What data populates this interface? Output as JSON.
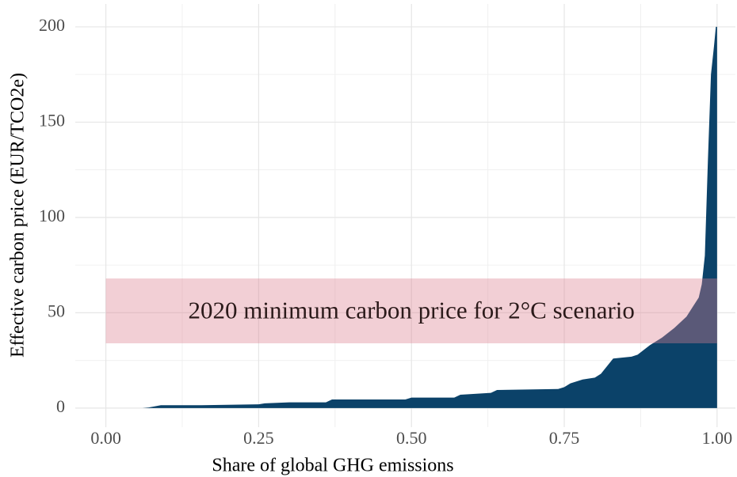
{
  "chart_data": {
    "type": "area",
    "x_label": "Share of global GHG emissions",
    "y_label": "Effective carbon price (EUR/TCO2e)",
    "annotation": "2020 minimum carbon price for 2°C scenario",
    "band": {
      "xlim": [
        0,
        1
      ],
      "ylim": [
        34,
        68
      ],
      "color": "rgba(222,130,145,0.38)"
    },
    "annotation_position": [
      0.5,
      50
    ],
    "color": "#0b4269",
    "x": [
      0.0,
      0.06,
      0.07,
      0.09,
      0.15,
      0.25,
      0.26,
      0.3,
      0.36,
      0.37,
      0.49,
      0.5,
      0.57,
      0.58,
      0.63,
      0.64,
      0.74,
      0.75,
      0.76,
      0.78,
      0.8,
      0.81,
      0.82,
      0.83,
      0.86,
      0.87,
      0.89,
      0.91,
      0.93,
      0.95,
      0.96,
      0.97,
      0.975,
      0.98,
      0.985,
      0.99,
      0.995,
      0.998,
      1.0
    ],
    "values": [
      0,
      0,
      0.3,
      1.5,
      1.5,
      2,
      2.5,
      3,
      3,
      4.5,
      4.5,
      5.5,
      5.5,
      7,
      8,
      9.5,
      10,
      11,
      13,
      15,
      16,
      18,
      22,
      26,
      27,
      28,
      33,
      37,
      42,
      48,
      53,
      58,
      65,
      80,
      130,
      175,
      190,
      200,
      200
    ],
    "xlim": [
      -0.05,
      1.03
    ],
    "ylim": [
      -10,
      212
    ],
    "xticks": [
      {
        "value": 0,
        "label": "0.00"
      },
      {
        "value": 0.25,
        "label": "0.25"
      },
      {
        "value": 0.5,
        "label": "0.50"
      },
      {
        "value": 0.75,
        "label": "0.75"
      },
      {
        "value": 1,
        "label": "1.00"
      }
    ],
    "yticks": [
      0,
      50,
      100,
      150,
      200
    ],
    "x_minor_grid": [
      0.125,
      0.375,
      0.625,
      0.875
    ],
    "y_minor_grid": [
      25,
      75,
      125,
      175
    ],
    "grid": true
  }
}
